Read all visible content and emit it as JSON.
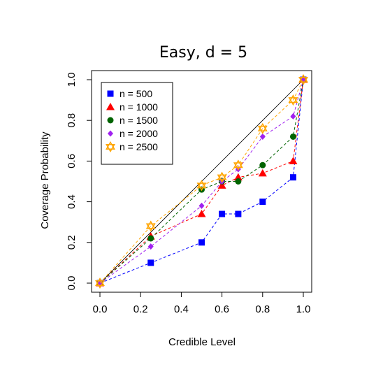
{
  "chart_data": {
    "type": "line",
    "title": "Easy, d = 5",
    "xlabel": "Credible Level",
    "ylabel": "Coverage Probability",
    "xlim": [
      0,
      1
    ],
    "ylim": [
      0,
      1
    ],
    "xticks": [
      "0.0",
      "0.2",
      "0.4",
      "0.6",
      "0.8",
      "1.0"
    ],
    "yticks": [
      "0.0",
      "0.2",
      "0.4",
      "0.6",
      "0.8",
      "1.0"
    ],
    "x": [
      0,
      0.25,
      0.5,
      0.6,
      0.68,
      0.8,
      0.95,
      1.0
    ],
    "reference_line": "y = x",
    "grid": false,
    "legend_position": "top-left",
    "series": [
      {
        "name": "n = 500",
        "color": "#0000ff",
        "marker": "square",
        "values": [
          0.0,
          0.1,
          0.2,
          0.34,
          0.34,
          0.4,
          0.52,
          1.0
        ]
      },
      {
        "name": "n = 1000",
        "color": "#ff0000",
        "marker": "triangle",
        "values": [
          0.0,
          0.23,
          0.34,
          0.48,
          0.52,
          0.54,
          0.6,
          1.0
        ]
      },
      {
        "name": "n = 1500",
        "color": "#006400",
        "marker": "circle",
        "values": [
          0.0,
          0.22,
          0.46,
          0.5,
          0.5,
          0.58,
          0.72,
          1.0
        ]
      },
      {
        "name": "n = 2000",
        "color": "#a020f0",
        "marker": "diamond",
        "values": [
          0.0,
          0.18,
          0.38,
          0.5,
          0.56,
          0.72,
          0.82,
          1.0
        ]
      },
      {
        "name": "n = 2500",
        "color": "#ffa500",
        "marker": "star",
        "values": [
          0.0,
          0.28,
          0.48,
          0.52,
          0.58,
          0.76,
          0.9,
          1.0
        ]
      }
    ]
  }
}
